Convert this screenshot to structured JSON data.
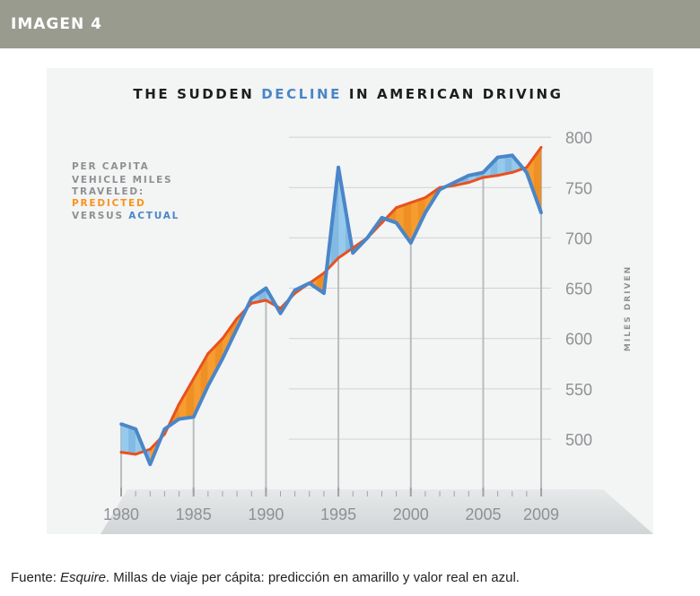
{
  "header": {
    "label": "IMAGEN 4"
  },
  "caption": {
    "prefix": "Fuente: ",
    "source": "Esquire",
    "text": ". Millas de viaje per cápita: predicción en amarillo y valor real en azul."
  },
  "colors": {
    "predicted": "#f7941d",
    "predicted_line": "#e8511f",
    "actual": "#4a86c8",
    "actual_fill": "#8ec6ea",
    "title_text": "#1d1d1d",
    "grey_text": "#8e9193"
  },
  "chart_data": {
    "type": "area",
    "title": {
      "before": "THE SUDDEN ",
      "highlight": "DECLINE",
      "after": " IN AMERICAN DRIVING"
    },
    "legend": {
      "placement": "top-left",
      "lines": [
        "PER CAPITA",
        "VEHICLE MILES",
        "TRAVELED:"
      ],
      "predicted_label": "PREDICTED",
      "versus_label": "VERSUS ",
      "actual_label": "ACTUAL"
    },
    "ylabel": "MILES DRIVEN",
    "ylim": [
      460,
      830
    ],
    "yticks": [
      500,
      550,
      600,
      650,
      700,
      750,
      800
    ],
    "xlim": [
      1980,
      2009
    ],
    "xticks": [
      1980,
      1985,
      1990,
      1995,
      2000,
      2005,
      2009
    ],
    "x": [
      1980,
      1981,
      1982,
      1983,
      1984,
      1985,
      1986,
      1987,
      1988,
      1989,
      1990,
      1991,
      1992,
      1993,
      1994,
      1995,
      1996,
      1997,
      1998,
      1999,
      2000,
      2001,
      2002,
      2003,
      2004,
      2005,
      2006,
      2007,
      2008,
      2009
    ],
    "series": [
      {
        "name": "PREDICTED",
        "values": [
          487,
          485,
          490,
          505,
          535,
          560,
          585,
          600,
          620,
          635,
          638,
          630,
          645,
          655,
          665,
          680,
          690,
          700,
          715,
          730,
          735,
          740,
          750,
          752,
          755,
          760,
          762,
          765,
          770,
          790
        ]
      },
      {
        "name": "ACTUAL",
        "values": [
          515,
          510,
          475,
          510,
          520,
          522,
          553,
          580,
          610,
          640,
          650,
          625,
          648,
          655,
          645,
          770,
          685,
          700,
          720,
          715,
          695,
          725,
          748,
          755,
          762,
          765,
          780,
          782,
          765,
          725
        ]
      }
    ]
  }
}
